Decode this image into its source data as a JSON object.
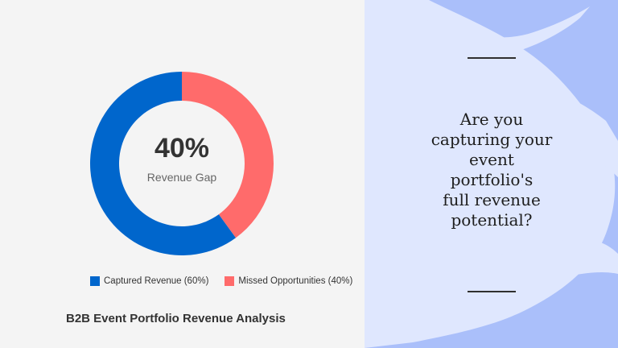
{
  "chart_data": {
    "type": "pie",
    "style": "donut",
    "title": "B2B Event Portfolio Revenue Analysis",
    "center_value": "40%",
    "center_label": "Revenue Gap",
    "series": [
      {
        "name": "Captured Revenue (60%)",
        "value": 60,
        "color": "#0066cc"
      },
      {
        "name": "Missed Opportunities (40%)",
        "value": 40,
        "color": "#ff6b6b"
      }
    ],
    "legend_position": "bottom"
  },
  "question": {
    "lines": [
      "Are you",
      "capturing your",
      "event",
      "portfolio's",
      "full revenue",
      "potential?"
    ]
  },
  "colors": {
    "left_background": "#f4f4f4",
    "right_background": "#aabffa",
    "brush": "#dfe7fe"
  }
}
